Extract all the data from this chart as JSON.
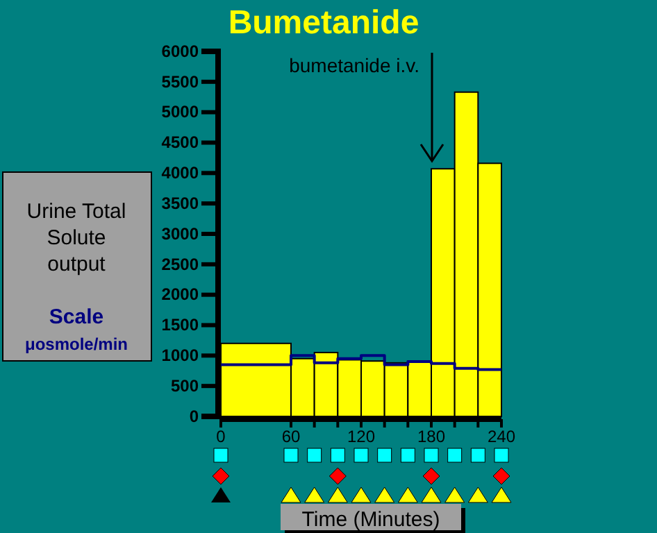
{
  "chart_data": {
    "type": "histogram",
    "title": "Bumetanide",
    "xlabel": "Time (Minutes)",
    "ylabel": "Urine Total Solute output",
    "annotations": [
      "bumetanide i.v.",
      "Scale",
      "μosmole/min"
    ],
    "bins": [
      0,
      60,
      80,
      100,
      120,
      140,
      160,
      180,
      200,
      220,
      240
    ],
    "series": [
      {
        "color": "#ffff00",
        "values": [
          1200,
          950,
          1050,
          930,
          910,
          880,
          910,
          4070,
          5330,
          4160
        ]
      },
      {
        "type": "step",
        "color": "#000080",
        "x": [
          0,
          60,
          80,
          100,
          120,
          140,
          160,
          180,
          200,
          220,
          240
        ],
        "values": [
          850,
          1000,
          880,
          950,
          1000,
          850,
          900,
          870,
          790,
          770,
          770
        ]
      }
    ],
    "xlim": [
      0,
      240
    ],
    "xticks": [
      0,
      60,
      {
        "value": 80,
        "label": null
      },
      {
        "value": 100,
        "label": null
      },
      120,
      {
        "value": 140,
        "label": null
      },
      {
        "value": 160,
        "label": null
      },
      180,
      {
        "value": 200,
        "label": null
      },
      {
        "value": 220,
        "label": null
      },
      240
    ],
    "ylim": [
      0,
      6000
    ],
    "yticks": [
      0,
      500,
      1000,
      1500,
      2000,
      2500,
      3000,
      3500,
      4000,
      4500,
      5000,
      5500,
      6000
    ],
    "grid": false
  }
}
